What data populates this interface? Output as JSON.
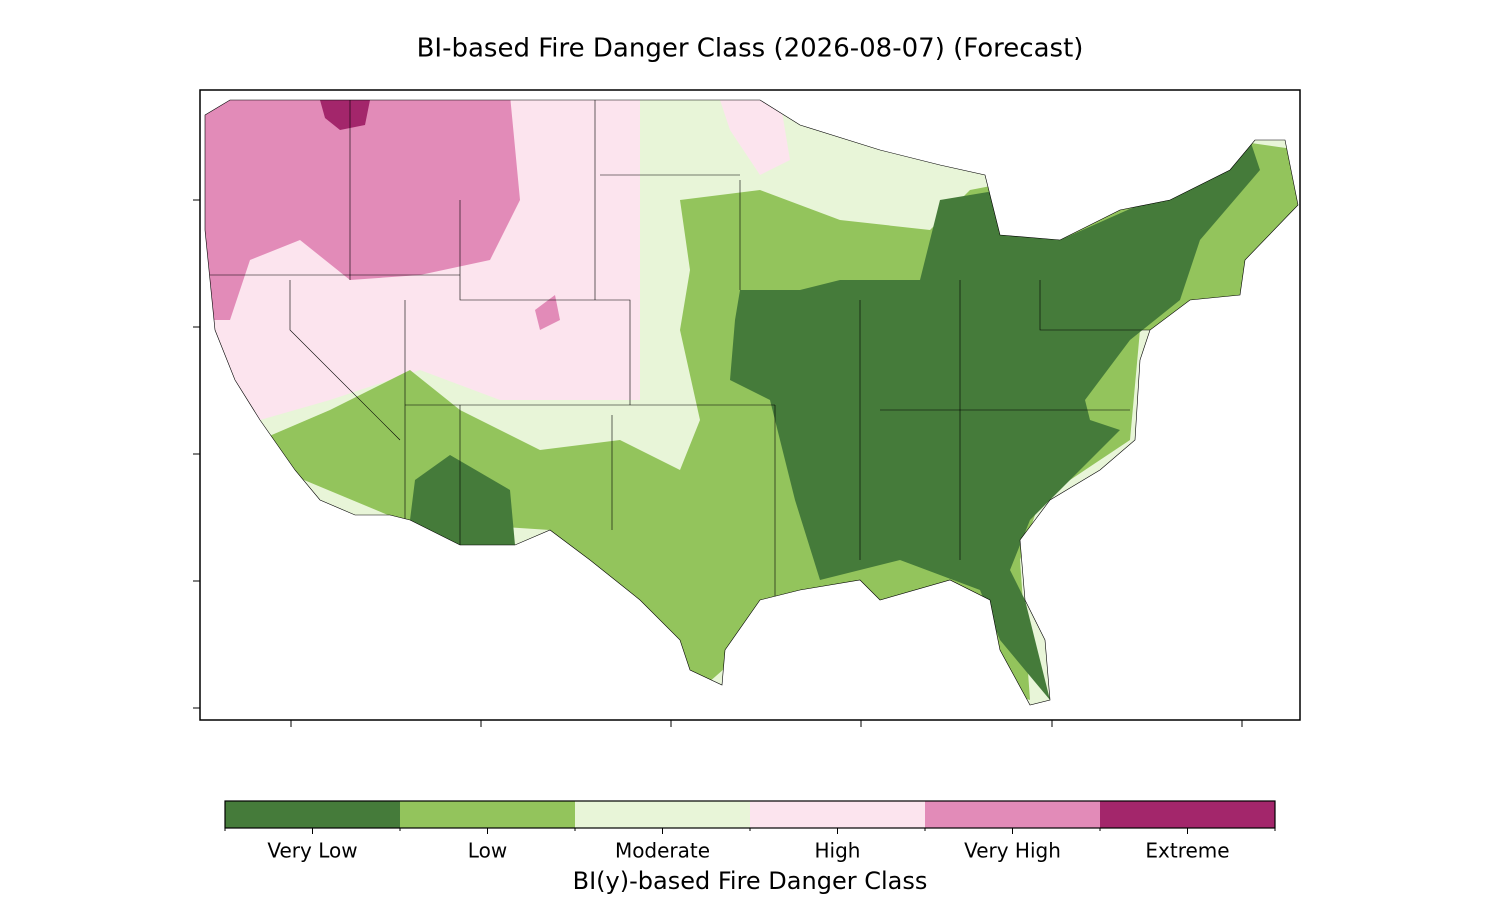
{
  "title": "BI-based Fire Danger Class (2026-08-07) (Forecast)",
  "colorbar": {
    "label": "BI(y)-based Fire Danger Class",
    "classes": [
      {
        "name": "Very Low",
        "color": "#457b3a"
      },
      {
        "name": "Low",
        "color": "#93c45c"
      },
      {
        "name": "Moderate",
        "color": "#e8f5d8"
      },
      {
        "name": "High",
        "color": "#fce4ee"
      },
      {
        "name": "Very High",
        "color": "#e28bb8"
      },
      {
        "name": "Extreme",
        "color": "#a3266b"
      }
    ]
  }
}
